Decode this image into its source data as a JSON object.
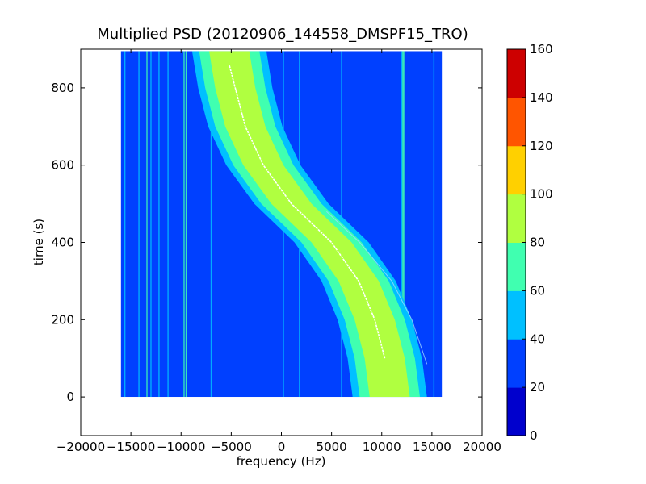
{
  "chart_data": {
    "type": "heatmap",
    "title": "Multiplied PSD (20120906_144558_DMSPF15_TRO)",
    "xlabel": "frequency (Hz)",
    "ylabel": "time (s)",
    "xlim": [
      -20000,
      20000
    ],
    "ylim": [
      -100,
      900
    ],
    "x_ticks": [
      -20000,
      -15000,
      -10000,
      -5000,
      0,
      5000,
      10000,
      15000,
      20000
    ],
    "x_tick_labels": [
      "−20000",
      "−15000",
      "−10000",
      "−5000",
      "0",
      "5000",
      "10000",
      "15000",
      "20000"
    ],
    "y_ticks": [
      0,
      200,
      400,
      600,
      800
    ],
    "y_tick_labels": [
      "0",
      "200",
      "400",
      "600",
      "800"
    ],
    "data_extent": {
      "x": [
        -16000,
        16000
      ],
      "y": [
        0,
        895
      ]
    },
    "grid": false,
    "colorbar": {
      "levels": [
        0,
        20,
        40,
        60,
        80,
        100,
        120,
        140,
        160
      ],
      "tick_labels": [
        "0",
        "20",
        "40",
        "60",
        "80",
        "100",
        "120",
        "140",
        "160"
      ],
      "colors": [
        "#0000cd",
        "#0040ff",
        "#00c0ff",
        "#40ffb0",
        "#b0ff40",
        "#ffd000",
        "#ff5500",
        "#cd0000"
      ]
    },
    "background_color": "#0040ff",
    "band": {
      "center_curve": [
        {
          "t": 0,
          "f": 10800
        },
        {
          "t": 100,
          "f": 10300
        },
        {
          "t": 200,
          "f": 9300
        },
        {
          "t": 300,
          "f": 7700
        },
        {
          "t": 400,
          "f": 5000
        },
        {
          "t": 450,
          "f": 3000
        },
        {
          "t": 500,
          "f": 1000
        },
        {
          "t": 600,
          "f": -1800
        },
        {
          "t": 700,
          "f": -3600
        },
        {
          "t": 800,
          "f": -4600
        },
        {
          "t": 895,
          "f": -5200
        }
      ],
      "level_half_widths_hz": {
        "40": 3700,
        "60": 3000,
        "80": 2000
      },
      "trace_color": "#ffffff",
      "trace_t_range": [
        10,
        860
      ]
    },
    "secondary_trace": [
      {
        "t": 85,
        "f": 14500
      },
      {
        "t": 200,
        "f": 13000
      },
      {
        "t": 300,
        "f": 11000
      },
      {
        "t": 400,
        "f": 7800
      },
      {
        "t": 480,
        "f": 4500
      }
    ],
    "vertical_lines_hz": [
      {
        "f": -15600,
        "level": 40
      },
      {
        "f": -14200,
        "level": 40
      },
      {
        "f": -13400,
        "level": 60
      },
      {
        "f": -13000,
        "level": 40
      },
      {
        "f": -12200,
        "level": 40
      },
      {
        "f": -11300,
        "level": 40
      },
      {
        "f": -9700,
        "level": 60
      },
      {
        "f": -9500,
        "level": 60
      },
      {
        "f": -7000,
        "level": 40
      },
      {
        "f": 200,
        "level": 40
      },
      {
        "f": 1800,
        "level": 40
      },
      {
        "f": 6000,
        "level": 40
      },
      {
        "f": 12000,
        "level": 40
      },
      {
        "f": 12100,
        "level": 60
      },
      {
        "f": 12200,
        "level": 60
      },
      {
        "f": 15200,
        "level": 40
      }
    ]
  }
}
